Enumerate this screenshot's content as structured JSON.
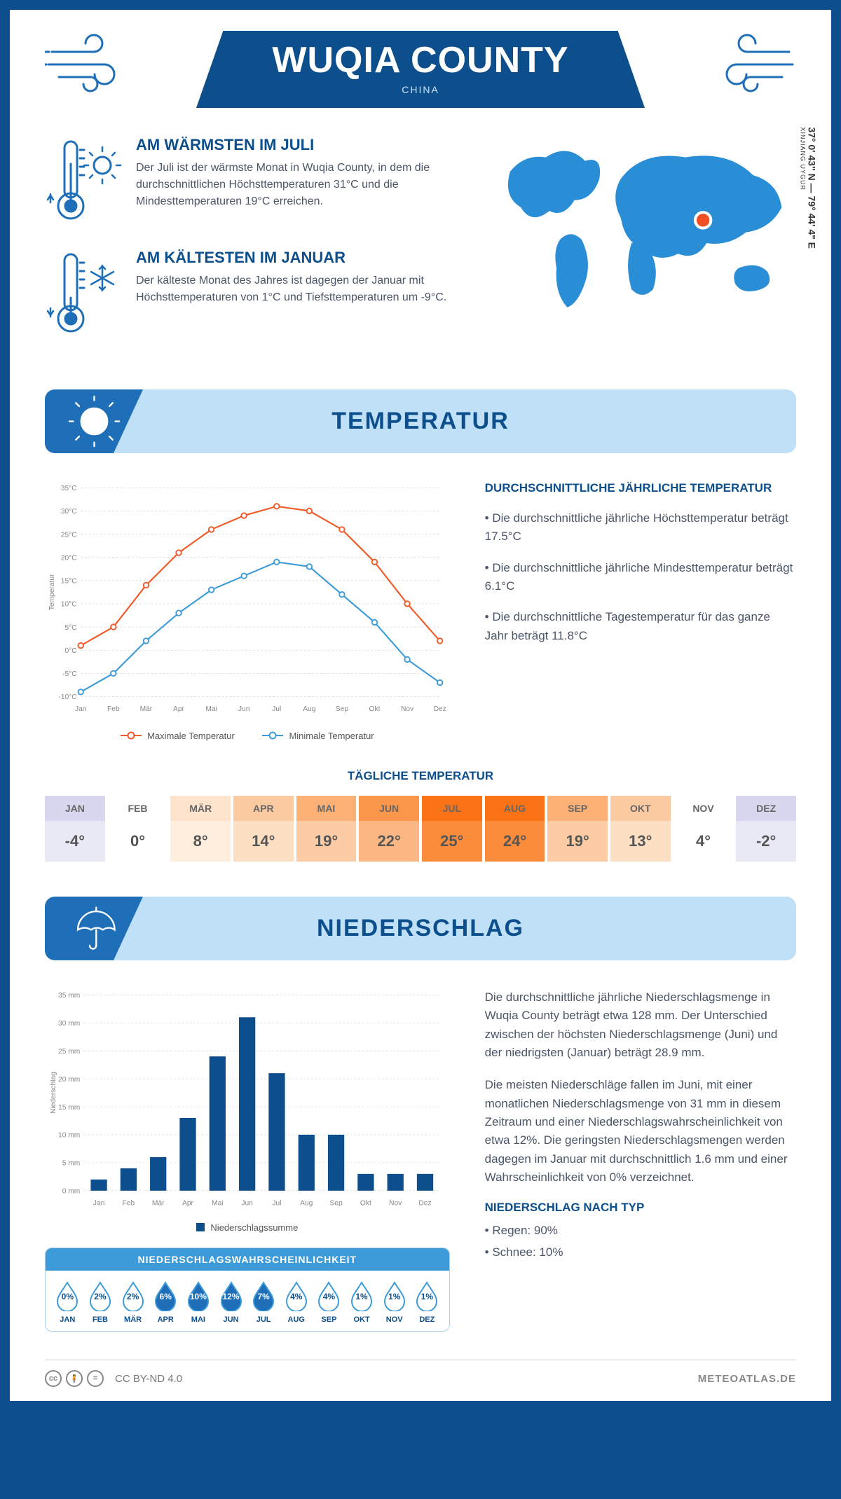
{
  "header": {
    "title": "WUQIA COUNTY",
    "country": "CHINA",
    "coords": "37° 0' 43\" N — 79° 44' 4\" E",
    "region": "XINJIANG UYGUR"
  },
  "warm": {
    "title": "AM WÄRMSTEN IM JULI",
    "text": "Der Juli ist der wärmste Monat in Wuqia County, in dem die durchschnittlichen Höchsttemperaturen 31°C und die Mindesttemperaturen 19°C erreichen."
  },
  "cold": {
    "title": "AM KÄLTESTEN IM JANUAR",
    "text": "Der kälteste Monat des Jahres ist dagegen der Januar mit Höchsttemperaturen von 1°C und Tiefsttemperaturen um -9°C."
  },
  "map": {
    "marker_color": "#f04e23",
    "land_color": "#2a8ed6"
  },
  "sections": {
    "temp_title": "TEMPERATUR",
    "precip_title": "NIEDERSCHLAG"
  },
  "temp_chart": {
    "type": "line",
    "months": [
      "Jan",
      "Feb",
      "Mär",
      "Apr",
      "Mai",
      "Jun",
      "Jul",
      "Aug",
      "Sep",
      "Okt",
      "Nov",
      "Dez"
    ],
    "max_series": {
      "label": "Maximale Temperatur",
      "color": "#f05a28",
      "values": [
        1,
        5,
        14,
        21,
        26,
        29,
        31,
        30,
        26,
        19,
        10,
        2
      ]
    },
    "min_series": {
      "label": "Minimale Temperatur",
      "color": "#3d9bd9",
      "values": [
        -9,
        -5,
        2,
        8,
        13,
        16,
        19,
        18,
        12,
        6,
        -2,
        -7
      ]
    },
    "ylim": [
      -10,
      35
    ],
    "ytick_step": 5,
    "yunit": "°C",
    "ylabel": "Temperatur",
    "grid_color": "#cccccc"
  },
  "temp_text": {
    "heading": "DURCHSCHNITTLICHE JÄHRLICHE TEMPERATUR",
    "b1": "• Die durchschnittliche jährliche Höchsttemperatur beträgt 17.5°C",
    "b2": "• Die durchschnittliche jährliche Mindesttemperatur beträgt 6.1°C",
    "b3": "• Die durchschnittliche Tagestemperatur für das ganze Jahr beträgt 11.8°C"
  },
  "daily": {
    "title": "TÄGLICHE TEMPERATUR",
    "months": [
      "JAN",
      "FEB",
      "MÄR",
      "APR",
      "MAI",
      "JUN",
      "JUL",
      "AUG",
      "SEP",
      "OKT",
      "NOV",
      "DEZ"
    ],
    "values": [
      "-4°",
      "0°",
      "8°",
      "14°",
      "19°",
      "22°",
      "25°",
      "24°",
      "19°",
      "13°",
      "4°",
      "-2°"
    ],
    "header_bg": [
      "#d9d7ef",
      "#ffffff",
      "#fde3cc",
      "#fccaa1",
      "#fbb176",
      "#fb964a",
      "#f97316",
      "#f97316",
      "#fbb176",
      "#fccaa1",
      "#ffffff",
      "#d9d7ef"
    ],
    "value_bg": [
      "#e9e8f5",
      "#ffffff",
      "#feeedd",
      "#fddfc4",
      "#fccda5",
      "#fbb783",
      "#fb8c3c",
      "#fb8c3c",
      "#fccda5",
      "#fddfc4",
      "#ffffff",
      "#e9e8f5"
    ]
  },
  "precip_chart": {
    "type": "bar",
    "months": [
      "Jan",
      "Feb",
      "Mär",
      "Apr",
      "Mai",
      "Jun",
      "Jul",
      "Aug",
      "Sep",
      "Okt",
      "Nov",
      "Dez"
    ],
    "values": [
      2,
      4,
      6,
      13,
      24,
      31,
      21,
      10,
      10,
      3,
      3,
      3
    ],
    "bar_color": "#0c4f8c",
    "ylim": [
      0,
      35
    ],
    "ytick_step": 5,
    "yunit": " mm",
    "ylabel": "Niederschlag",
    "legend": "Niederschlagssumme"
  },
  "precip_text": {
    "p1": "Die durchschnittliche jährliche Niederschlagsmenge in Wuqia County beträgt etwa 128 mm. Der Unterschied zwischen der höchsten Niederschlagsmenge (Juni) und der niedrigsten (Januar) beträgt 28.9 mm.",
    "p2": "Die meisten Niederschläge fallen im Juni, mit einer monatlichen Niederschlagsmenge von 31 mm in diesem Zeitraum und einer Niederschlagswahrscheinlichkeit von etwa 12%. Die geringsten Niederschlagsmengen werden dagegen im Januar mit durchschnittlich 1.6 mm und einer Wahrscheinlichkeit von 0% verzeichnet.",
    "type_heading": "NIEDERSCHLAG NACH TYP",
    "type_b1": "• Regen: 90%",
    "type_b2": "• Schnee: 10%"
  },
  "probability": {
    "title": "NIEDERSCHLAGSWAHRSCHEINLICHKEIT",
    "months": [
      "JAN",
      "FEB",
      "MÄR",
      "APR",
      "MAI",
      "JUN",
      "JUL",
      "AUG",
      "SEP",
      "OKT",
      "NOV",
      "DEZ"
    ],
    "values": [
      "0%",
      "2%",
      "2%",
      "6%",
      "10%",
      "12%",
      "7%",
      "4%",
      "4%",
      "1%",
      "1%",
      "1%"
    ],
    "filled": [
      false,
      false,
      false,
      true,
      true,
      true,
      true,
      false,
      false,
      false,
      false,
      false
    ],
    "outline_color": "#3d9bd9",
    "fill_color": "#1e6eb8"
  },
  "footer": {
    "license": "CC BY-ND 4.0",
    "brand": "METEOATLAS.DE"
  },
  "colors": {
    "primary": "#0c4f8c",
    "accent": "#3d9bd9",
    "section_bg": "#bfe0f7"
  }
}
